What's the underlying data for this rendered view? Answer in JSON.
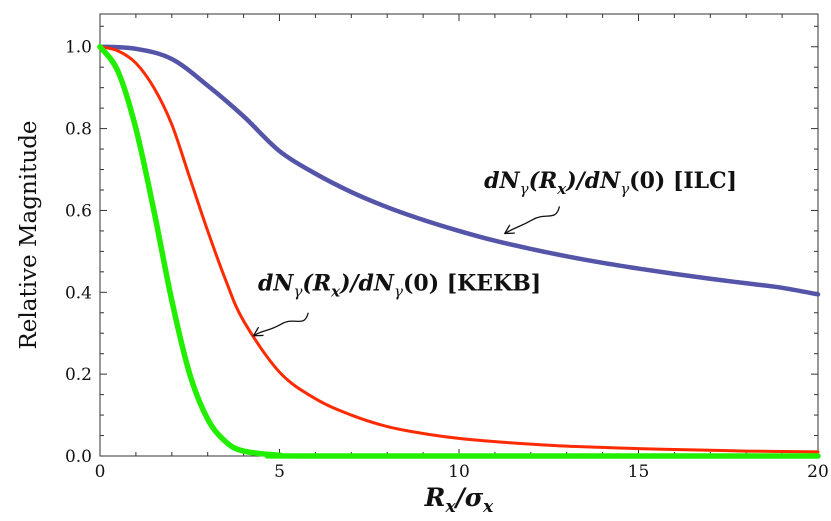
{
  "chart_data": {
    "type": "line",
    "title": "",
    "xlabel": "R_x/σ_x",
    "ylabel": "Relative Magnitude",
    "xlim": [
      0,
      20
    ],
    "ylim": [
      0,
      1.08
    ],
    "x_ticks": [
      "0",
      "5",
      "10",
      "15",
      "20"
    ],
    "y_ticks": [
      "0.0",
      "0.2",
      "0.4",
      "0.6",
      "0.8",
      "1.0"
    ],
    "grid": false,
    "legend": "none",
    "series": [
      {
        "color": "#5454a8",
        "values": [
          [
            0,
            1.0
          ],
          [
            1,
            0.995
          ],
          [
            2,
            0.97
          ],
          [
            3,
            0.905
          ],
          [
            4,
            0.83
          ],
          [
            5,
            0.745
          ],
          [
            6,
            0.69
          ],
          [
            7,
            0.645
          ],
          [
            8,
            0.608
          ],
          [
            9,
            0.577
          ],
          [
            10,
            0.55
          ],
          [
            11,
            0.526
          ],
          [
            12,
            0.506
          ],
          [
            13,
            0.488
          ],
          [
            14,
            0.472
          ],
          [
            15,
            0.458
          ],
          [
            16,
            0.445
          ],
          [
            17,
            0.433
          ],
          [
            18,
            0.422
          ],
          [
            19,
            0.411
          ],
          [
            20,
            0.395
          ]
        ]
      },
      {
        "color": "#ff2a00",
        "values": [
          [
            0,
            1.0
          ],
          [
            0.5,
            0.99
          ],
          [
            1,
            0.96
          ],
          [
            1.5,
            0.9
          ],
          [
            2,
            0.81
          ],
          [
            2.5,
            0.68
          ],
          [
            3,
            0.55
          ],
          [
            3.5,
            0.43
          ],
          [
            4,
            0.33
          ],
          [
            5,
            0.205
          ],
          [
            6,
            0.14
          ],
          [
            7,
            0.1
          ],
          [
            8,
            0.072
          ],
          [
            9,
            0.055
          ],
          [
            10,
            0.043
          ],
          [
            11,
            0.035
          ],
          [
            12,
            0.029
          ],
          [
            13,
            0.024
          ],
          [
            14,
            0.021
          ],
          [
            15,
            0.018
          ],
          [
            16,
            0.016
          ],
          [
            17,
            0.014
          ],
          [
            18,
            0.012
          ],
          [
            19,
            0.011
          ],
          [
            20,
            0.01
          ]
        ]
      },
      {
        "color": "#22ee00",
        "values": [
          [
            0,
            1.0
          ],
          [
            0.5,
            0.94
          ],
          [
            1,
            0.8
          ],
          [
            1.5,
            0.6
          ],
          [
            2,
            0.38
          ],
          [
            2.5,
            0.2
          ],
          [
            3,
            0.09
          ],
          [
            3.5,
            0.035
          ],
          [
            4,
            0.012
          ],
          [
            5,
            0.002
          ],
          [
            6,
            0.0
          ],
          [
            20,
            0.0
          ]
        ]
      }
    ],
    "annotations": [
      {
        "name": "ilc",
        "prefix": "dN",
        "sub1": "γ",
        "open": "(R",
        "sub2": "x",
        "mid": ")/dN",
        "sub3": "γ",
        "tail": "(0) [ILC]",
        "tx": 10.7,
        "ty": 0.655,
        "arrow_from": [
          12.8,
          0.61
        ],
        "arrow_to": [
          11.3,
          0.545
        ]
      },
      {
        "name": "kekb",
        "prefix": "dN",
        "sub1": "γ",
        "open": "(R",
        "sub2": "x",
        "mid": ")/dN",
        "sub3": "γ",
        "tail": "(0) [KEKB]",
        "tx": 4.4,
        "ty": 0.405,
        "arrow_from": [
          5.8,
          0.35
        ],
        "arrow_to": [
          4.3,
          0.295
        ]
      }
    ]
  }
}
